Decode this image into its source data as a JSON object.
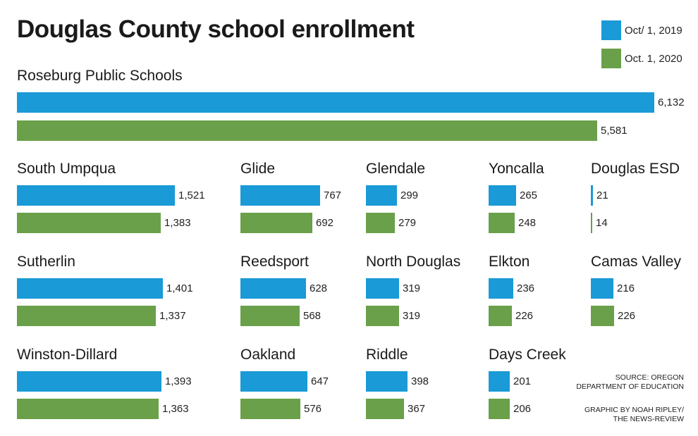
{
  "chart_data": {
    "type": "bar",
    "title": "Douglas County school enrollment",
    "orientation": "horizontal",
    "series": [
      {
        "name": "Oct/ 1, 2019",
        "color": "#1a9ad6"
      },
      {
        "name": "Oct. 1, 2020",
        "color": "#6aa04a"
      }
    ],
    "panels": [
      {
        "name": "Roseburg Public Schools",
        "values": [
          6132,
          5581
        ],
        "labels": [
          "6,132",
          "5,581"
        ]
      },
      {
        "name": "South Umpqua",
        "values": [
          1521,
          1383
        ],
        "labels": [
          "1,521",
          "1,383"
        ]
      },
      {
        "name": "Glide",
        "values": [
          767,
          692
        ],
        "labels": [
          "767",
          "692"
        ]
      },
      {
        "name": "Glendale",
        "values": [
          299,
          279
        ],
        "labels": [
          "299",
          "279"
        ]
      },
      {
        "name": "Yoncalla",
        "values": [
          265,
          248
        ],
        "labels": [
          "265",
          "248"
        ]
      },
      {
        "name": "Douglas ESD",
        "values": [
          21,
          14
        ],
        "labels": [
          "21",
          "14"
        ]
      },
      {
        "name": "Sutherlin",
        "values": [
          1401,
          1337
        ],
        "labels": [
          "1,401",
          "1,337"
        ]
      },
      {
        "name": "Reedsport",
        "values": [
          628,
          568
        ],
        "labels": [
          "628",
          "568"
        ]
      },
      {
        "name": "North Douglas",
        "values": [
          319,
          319
        ],
        "labels": [
          "319",
          "319"
        ]
      },
      {
        "name": "Elkton",
        "values": [
          236,
          226
        ],
        "labels": [
          "236",
          "226"
        ]
      },
      {
        "name": "Camas Valley",
        "values": [
          216,
          226
        ],
        "labels": [
          "216",
          "226"
        ]
      },
      {
        "name": "Winston-Dillard",
        "values": [
          1393,
          1363
        ],
        "labels": [
          "1,393",
          "1,363"
        ]
      },
      {
        "name": "Oakland",
        "values": [
          647,
          576
        ],
        "labels": [
          "647",
          "576"
        ]
      },
      {
        "name": "Riddle",
        "values": [
          398,
          367
        ],
        "labels": [
          "398",
          "367"
        ]
      },
      {
        "name": "Days Creek",
        "values": [
          201,
          206
        ],
        "labels": [
          "201",
          "206"
        ]
      }
    ]
  },
  "notes": {
    "source": "SOURCE: OREGON\nDEPARTMENT OF EDUCATION",
    "credit": "GRAPHIC BY NOAH RIPLEY/\nTHE NEWS-REVIEW"
  }
}
